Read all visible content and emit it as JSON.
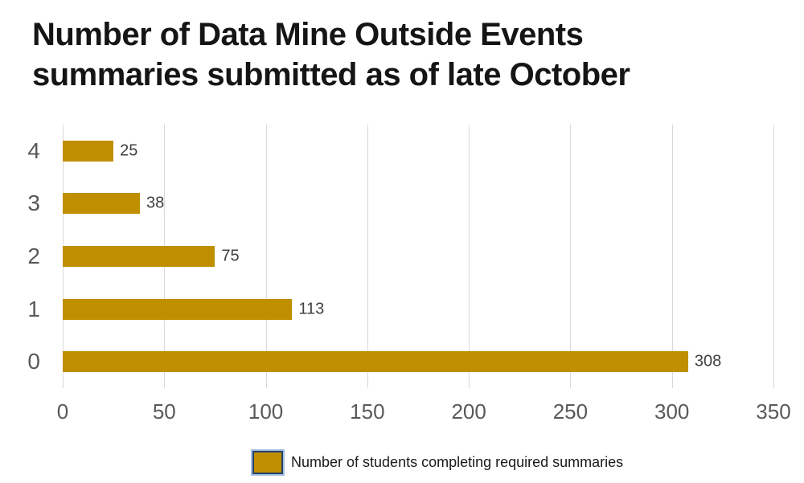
{
  "title": "Number of Data Mine Outside Events summaries submitted as of late October",
  "chart_data": {
    "type": "bar",
    "orientation": "horizontal",
    "title": "Number of Data Mine Outside Events summaries submitted as of late October",
    "categories": [
      "4",
      "3",
      "2",
      "1",
      "0"
    ],
    "values": [
      25,
      38,
      75,
      113,
      308
    ],
    "data_labels": [
      "25",
      "38",
      "75",
      "113",
      "308"
    ],
    "series": [
      {
        "name": "Number of students completing required summaries",
        "values": [
          25,
          38,
          75,
          113,
          308
        ]
      }
    ],
    "xlabel": "",
    "ylabel": "",
    "xlim": [
      0,
      350
    ],
    "x_ticks": [
      "0",
      "50",
      "100",
      "150",
      "200",
      "250",
      "300",
      "350"
    ],
    "grid": "vertical-only",
    "legend_position": "bottom"
  },
  "legend": {
    "label": "Number of students completing required summaries"
  },
  "colors": {
    "bar": "#bf8f00",
    "gridline": "#d9d9d9",
    "axis_text": "#595959",
    "data_label": "#404040",
    "title_text": "#151515",
    "legend_border": "#24436b",
    "legend_outline": "#a7bfe0"
  }
}
